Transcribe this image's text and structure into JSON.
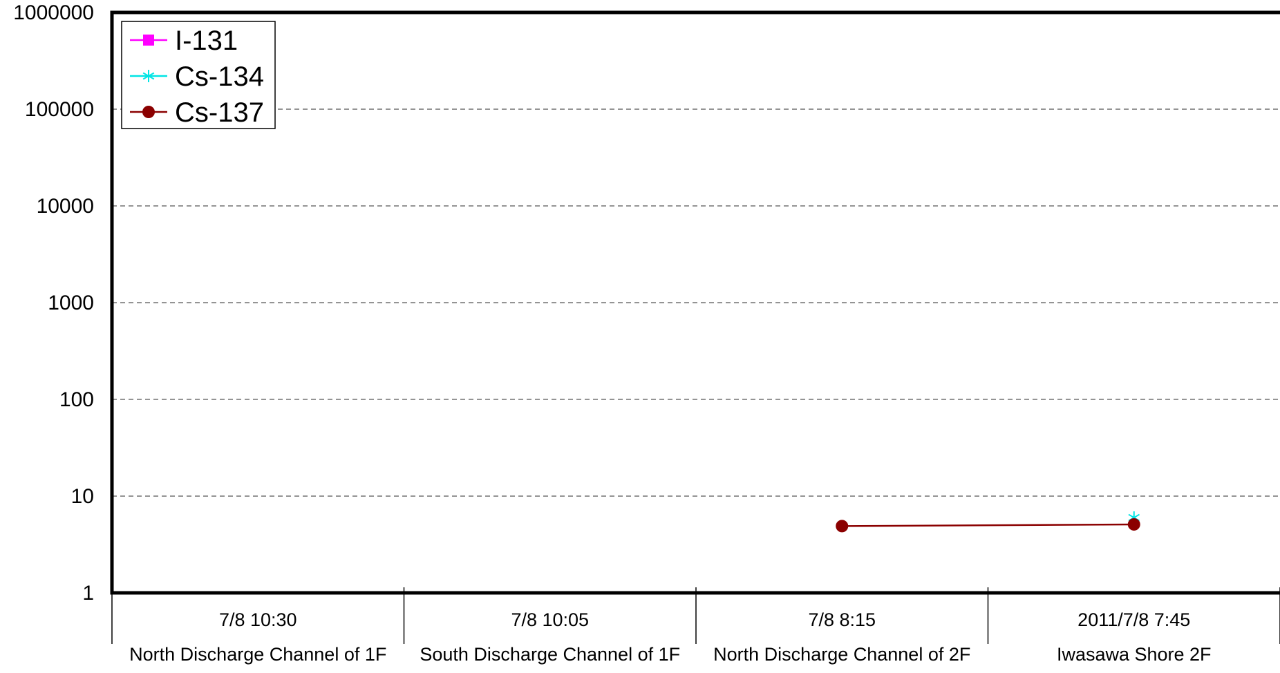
{
  "chart_data": {
    "type": "line",
    "y_scale": "log",
    "ylim": [
      1,
      1000000
    ],
    "yticks": [
      1,
      10,
      100,
      1000,
      10000,
      100000,
      1000000
    ],
    "ytick_labels": [
      "1",
      "10",
      "100",
      "1000",
      "10000",
      "100000",
      "1000000"
    ],
    "categories": [
      {
        "time": "7/8 10:30",
        "location": "North Discharge Channel of 1F"
      },
      {
        "time": "7/8 10:05",
        "location": "South Discharge Channel of 1F"
      },
      {
        "time": "7/8 8:15",
        "location": "North Discharge Channel of 2F"
      },
      {
        "time": "2011/7/8 7:45",
        "location": "Iwasawa Shore 2F"
      }
    ],
    "series": [
      {
        "name": "I-131",
        "color": "#ff00ff",
        "marker": "square",
        "values": [
          null,
          null,
          null,
          null
        ]
      },
      {
        "name": "Cs-134",
        "color": "#00e5e5",
        "marker": "asterisk",
        "values": [
          null,
          null,
          null,
          6.0
        ]
      },
      {
        "name": "Cs-137",
        "color": "#8b0000",
        "marker": "circle",
        "values": [
          null,
          null,
          4.9,
          5.1
        ]
      }
    ],
    "grid": "horizontal-dashed",
    "legend_position": "top-left"
  }
}
